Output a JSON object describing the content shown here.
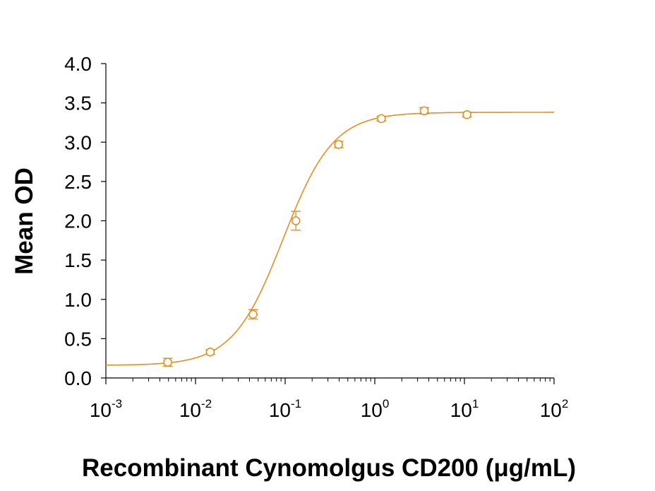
{
  "chart_data": {
    "type": "scatter",
    "title": "",
    "xlabel": "Recombinant Cynomolgus CD200 (μg/mL)",
    "ylabel": "Mean OD",
    "x_scale": "log",
    "xlim": [
      0.001,
      100
    ],
    "ylim": [
      0.0,
      4.0
    ],
    "grid": false,
    "legend": "none",
    "color": "#E38F23",
    "x_ticks": [
      {
        "base": "10",
        "exp": "-3"
      },
      {
        "base": "10",
        "exp": "-2"
      },
      {
        "base": "10",
        "exp": "-1"
      },
      {
        "base": "10",
        "exp": "0"
      },
      {
        "base": "10",
        "exp": "1"
      },
      {
        "base": "10",
        "exp": "2"
      }
    ],
    "x_tick_values": [
      0.001,
      0.01,
      0.1,
      1,
      10,
      100
    ],
    "y_ticks": [
      "0.0",
      "0.5",
      "1.0",
      "1.5",
      "2.0",
      "2.5",
      "3.0",
      "3.5",
      "4.0"
    ],
    "y_tick_values": [
      0,
      0.5,
      1.0,
      1.5,
      2.0,
      2.5,
      3.0,
      3.5,
      4.0
    ],
    "series": [
      {
        "x": [
          0.0049,
          0.0146,
          0.0439,
          0.1317,
          0.395,
          1.185,
          3.556,
          10.67
        ],
        "y": [
          0.2,
          0.33,
          0.81,
          2.0,
          2.97,
          3.3,
          3.4,
          3.35
        ],
        "error": [
          0.05,
          0.03,
          0.06,
          0.12,
          0.04,
          0.03,
          0.04,
          0.03
        ]
      }
    ],
    "fit": {
      "type": "4PL",
      "bottom": 0.16,
      "top": 3.38,
      "ec50": 0.095,
      "hill": 1.55
    }
  }
}
